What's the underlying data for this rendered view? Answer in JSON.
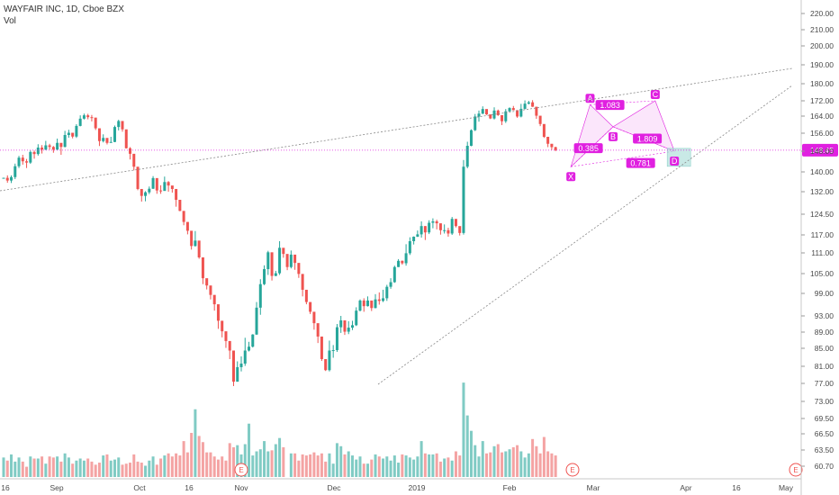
{
  "header": {
    "title": "WAYFAIR INC, 1D, Cboe BZX",
    "volume_label": "Vol"
  },
  "colors": {
    "up": "#26a69a",
    "down": "#ef5350",
    "up_vol": "#80cbc4",
    "down_vol": "#f4a3a3",
    "pattern": "#e020e0",
    "pattern_fill": "#f6c8f6",
    "target_box": "#b2dfdb",
    "trend": "#888888"
  },
  "chart_data": {
    "type": "candlestick",
    "title": "WAYFAIR INC, 1D, Cboe BZX",
    "price_axis_ticks": [
      "220.00",
      "210.00",
      "200.00",
      "190.00",
      "180.00",
      "172.00",
      "164.00",
      "156.00",
      "148.00",
      "140.00",
      "132.00",
      "124.50",
      "117.00",
      "111.00",
      "105.00",
      "99.00",
      "93.00",
      "89.00",
      "85.00",
      "81.00",
      "77.00",
      "73.00",
      "69.50",
      "66.50",
      "63.50",
      "60.70"
    ],
    "time_axis_ticks": [
      "16",
      "Sep",
      "Oct",
      "16",
      "Nov",
      "Dec",
      "2019",
      "Feb",
      "Mar",
      "Apr",
      "16",
      "May"
    ],
    "last_price": "148.45",
    "price_range": [
      58,
      224
    ],
    "earnings_markers": [
      "E",
      "E",
      "E"
    ],
    "harmonic_pattern": {
      "points": [
        {
          "label": "X",
          "price": 142
        },
        {
          "label": "A",
          "price": 170
        },
        {
          "label": "B",
          "price": 159
        },
        {
          "label": "C",
          "price": 172
        },
        {
          "label": "D",
          "price": 148
        }
      ],
      "ratios": [
        "1.083",
        "0.385",
        "1.809",
        "0.781"
      ]
    },
    "candles": [
      [
        137.6,
        137.6,
        137.7,
        137.6,
        19
      ],
      [
        137.6,
        136.5,
        138.6,
        135.6,
        16
      ],
      [
        136.5,
        137.9,
        138.6,
        135.5,
        22
      ],
      [
        137.9,
        142.2,
        143.2,
        137.1,
        15
      ],
      [
        142.2,
        145.5,
        146.2,
        141.5,
        19
      ],
      [
        145.5,
        144.1,
        146.6,
        142.8,
        15
      ],
      [
        144.1,
        143.6,
        145,
        141.5,
        10
      ],
      [
        143.6,
        147.7,
        148.3,
        143.1,
        20
      ],
      [
        147.7,
        146.9,
        148.3,
        145.1,
        18
      ],
      [
        146.9,
        149.6,
        151.1,
        146.3,
        18
      ],
      [
        149.6,
        148.7,
        150.7,
        147.1,
        20
      ],
      [
        148.7,
        150.6,
        152.6,
        148.5,
        13
      ],
      [
        150.6,
        149.9,
        151.3,
        148.7,
        20
      ],
      [
        149.9,
        148.7,
        150.3,
        147.4,
        19
      ],
      [
        148.7,
        151.7,
        153.6,
        148.6,
        20
      ],
      [
        151.7,
        149.9,
        151.2,
        146.6,
        15
      ],
      [
        149.9,
        155.2,
        157.1,
        149.7,
        23
      ],
      [
        155.2,
        156.2,
        157.6,
        154,
        19
      ],
      [
        156.2,
        154.5,
        155.4,
        153.7,
        13
      ],
      [
        154.5,
        159.4,
        160.2,
        153.9,
        16
      ],
      [
        159.4,
        162.8,
        164.4,
        159.2,
        18
      ],
      [
        162.8,
        164.4,
        165.3,
        162.4,
        16
      ],
      [
        164.4,
        163.5,
        165.2,
        162.5,
        18
      ],
      [
        163.5,
        163.3,
        164.6,
        161.5,
        15
      ],
      [
        163.3,
        158.3,
        159.4,
        157.5,
        12
      ],
      [
        158.3,
        152.5,
        153.6,
        150.3,
        14
      ],
      [
        152.5,
        153.9,
        155.5,
        151.9,
        21
      ],
      [
        153.9,
        151.7,
        152.6,
        151,
        22
      ],
      [
        151.7,
        152.1,
        154.4,
        151.7,
        16
      ],
      [
        152.1,
        158.9,
        159.6,
        152,
        17
      ],
      [
        158.9,
        161.7,
        162.3,
        157.3,
        19
      ],
      [
        161.7,
        157.8,
        158.4,
        156.7,
        12
      ],
      [
        157.8,
        149.3,
        151.4,
        149.2,
        13
      ],
      [
        149.3,
        147,
        149.8,
        144.8,
        14
      ],
      [
        147,
        142,
        142.6,
        140.6,
        22
      ],
      [
        142,
        133.1,
        133.8,
        132.6,
        15
      ],
      [
        133.1,
        130.6,
        132.2,
        128.7,
        14
      ],
      [
        130.6,
        131.8,
        132.2,
        128.8,
        11
      ],
      [
        131.8,
        133.2,
        134.1,
        131.2,
        16
      ],
      [
        133.2,
        137.5,
        138.3,
        133.1,
        20
      ],
      [
        137.5,
        132.5,
        134.3,
        131.3,
        12
      ],
      [
        132.5,
        132.3,
        134.6,
        131.3,
        18
      ],
      [
        132.3,
        135.9,
        138.1,
        134.2,
        21
      ],
      [
        135.9,
        134.5,
        136.3,
        132,
        23
      ],
      [
        134.5,
        133.1,
        133.9,
        131.7,
        20
      ],
      [
        133.1,
        129.3,
        129.5,
        127,
        23
      ],
      [
        129.3,
        125.6,
        127.3,
        125.5,
        21
      ],
      [
        125.6,
        121.7,
        123.5,
        120.5,
        35
      ],
      [
        121.7,
        118.5,
        119.9,
        117.2,
        24
      ],
      [
        118.5,
        113.3,
        114.5,
        112.1,
        43
      ],
      [
        113.3,
        115.1,
        118.4,
        113.1,
        66
      ],
      [
        115.1,
        109.7,
        111.5,
        109.3,
        40
      ],
      [
        109.7,
        103.6,
        105.6,
        101.8,
        34
      ],
      [
        103.6,
        101.4,
        102.8,
        100.2,
        24
      ],
      [
        101.4,
        98.6,
        100.2,
        97.4,
        24
      ],
      [
        98.6,
        96.1,
        98.1,
        94.4,
        20
      ],
      [
        96.1,
        91.8,
        93.5,
        89.8,
        17
      ],
      [
        91.8,
        89.2,
        91.5,
        87.7,
        20
      ],
      [
        89.2,
        86.8,
        88.4,
        85.1,
        16
      ],
      [
        86.8,
        84.5,
        86.6,
        82.6,
        33
      ],
      [
        84.5,
        77.4,
        80.1,
        76.4,
        29
      ],
      [
        77.4,
        80.8,
        82.1,
        77.4,
        31
      ],
      [
        80.8,
        81.6,
        83.2,
        79.8,
        22
      ],
      [
        81.6,
        84.5,
        87.6,
        81.1,
        32
      ],
      [
        84.5,
        85.4,
        86.6,
        84.3,
        52
      ],
      [
        85.4,
        88.4,
        88.5,
        85.2,
        21
      ],
      [
        88.4,
        95.2,
        96.7,
        88.3,
        25
      ],
      [
        95.2,
        101.8,
        103.3,
        93.3,
        27
      ],
      [
        101.8,
        106.3,
        107.4,
        101.5,
        35
      ],
      [
        106.3,
        111.2,
        111.7,
        104.6,
        25
      ],
      [
        111.2,
        104.3,
        105.5,
        102.9,
        26
      ],
      [
        104.3,
        105.1,
        105.8,
        104.2,
        32
      ],
      [
        105.1,
        112.7,
        114.9,
        104.6,
        38
      ],
      [
        112.7,
        110.7,
        112.4,
        109.6,
        29
      ],
      [
        110.7,
        106.9,
        108.4,
        106
      ],
      [
        106.9,
        110.5,
        111.8,
        106.5,
        23
      ],
      [
        110.5,
        108.1,
        109.5,
        106.1,
        23
      ],
      [
        108.1,
        104.9,
        106.3,
        103.7,
        16
      ],
      [
        104.9,
        100.1,
        101,
        98.2,
        22
      ],
      [
        100.1,
        96.7,
        98.6,
        96.1,
        21
      ],
      [
        96.7,
        94.1,
        95.6,
        93.5,
        22
      ],
      [
        94.1,
        91.2,
        92.7,
        89.6,
        24
      ],
      [
        91.2,
        87.9,
        89,
        86.3,
        21
      ],
      [
        87.9,
        82.6,
        84.7,
        82.2,
        23
      ],
      [
        82.6,
        80.1,
        80.9,
        79.9,
        15
      ],
      [
        80.1,
        84.5,
        86.9,
        79.8,
        23
      ],
      [
        84.5,
        84.6,
        85.8,
        82.9,
        13
      ],
      [
        84.6,
        90.2,
        91,
        84.2,
        33
      ],
      [
        90.2,
        91.9,
        93,
        88.8,
        30
      ],
      [
        91.9,
        89.1,
        90.8,
        88.3,
        22
      ],
      [
        89.1,
        90.1,
        91.7,
        88.5,
        25
      ],
      [
        90.1,
        90.7,
        91.8,
        89.5,
        21
      ],
      [
        90.7,
        94.4,
        95.3,
        90.5,
        17
      ],
      [
        94.4,
        97.1,
        97.4,
        94.2,
        20
      ],
      [
        97.1,
        95.6,
        97.7,
        94.1,
        13
      ],
      [
        95.6,
        97.1,
        98.2,
        95.5,
        13
      ],
      [
        97.1,
        95.1,
        96.2,
        94.3,
        17
      ],
      [
        95.1,
        97.4,
        98.8,
        95,
        22
      ],
      [
        97.4,
        97,
        99.3,
        96,
        20
      ],
      [
        97,
        97.7,
        100.1,
        96.7,
        18
      ],
      [
        97.7,
        101,
        101.6,
        97,
        20
      ],
      [
        101,
        102.4,
        103.6,
        100.4,
        16
      ],
      [
        102.4,
        106.9,
        107.3,
        102.2,
        21
      ],
      [
        106.9,
        108.7,
        109.2,
        106.9,
        14
      ],
      [
        108.7,
        108,
        108.8,
        107.6,
        22
      ],
      [
        108,
        110.9,
        113.9,
        107.3,
        21
      ],
      [
        110.9,
        114.9,
        116.2,
        110.4,
        19
      ],
      [
        114.9,
        116.4,
        116.5,
        113.8,
        17
      ],
      [
        116.4,
        117.2,
        118.6,
        116.3,
        20
      ],
      [
        117.2,
        120.2,
        121.9,
        116.1,
        35
      ],
      [
        120.2,
        117.9,
        120.2,
        115.3,
        23
      ],
      [
        117.9,
        121.4,
        122.3,
        117.3,
        22
      ],
      [
        121.4,
        121.9,
        123,
        119.4,
        22
      ],
      [
        121.9,
        121.2,
        122.5,
        119,
        23
      ],
      [
        121.2,
        118.7,
        120.1,
        117.1,
        15
      ],
      [
        118.7,
        118.7,
        120.8,
        117.5,
        18
      ],
      [
        118.7,
        117.5,
        119.6,
        116.4,
        19
      ],
      [
        117.5,
        122.8,
        123.5,
        117,
        16
      ],
      [
        122.8,
        120.2,
        121.1,
        119.7,
        25
      ],
      [
        120.2,
        117.7,
        118.4,
        116.8,
        21
      ],
      [
        117.7,
        142,
        144.6,
        117.1,
        92
      ],
      [
        142,
        150.4,
        152.2,
        141.4,
        60
      ],
      [
        150.4,
        157.4,
        157.8,
        150.2,
        45
      ],
      [
        157.4,
        163.8,
        165.1,
        157,
        31
      ],
      [
        163.8,
        165.3,
        166.9,
        161.4,
        20
      ],
      [
        165.3,
        167.7,
        169.1,
        165,
        35
      ],
      [
        167.7,
        164.9,
        166.8,
        164.6,
        23
      ],
      [
        164.9,
        162.9,
        163.6,
        162.6,
        24
      ],
      [
        162.9,
        166.9,
        168.6,
        162.4,
        30
      ],
      [
        166.9,
        164.5,
        167.4,
        164.1,
        32
      ],
      [
        164.5,
        161.6,
        163.2,
        159.8,
        24
      ],
      [
        161.6,
        166.5,
        167.7,
        160.8,
        25
      ],
      [
        166.5,
        168.2,
        168.6,
        166.4,
        27
      ],
      [
        168.2,
        167.1,
        169.3,
        167,
        29
      ],
      [
        167.1,
        163.8,
        166.7,
        163.2,
        31
      ],
      [
        163.8,
        167.8,
        170.4,
        163.4,
        25
      ],
      [
        167.8,
        170.5,
        172.2,
        167.5,
        19
      ],
      [
        170.5,
        171.2,
        172,
        170.1,
        23
      ],
      [
        171.2,
        168.9,
        172.3,
        168.8,
        37
      ],
      [
        168.9,
        164.2,
        165.6,
        162.7,
        30
      ],
      [
        164.2,
        160.3,
        162.3,
        159.3,
        23
      ],
      [
        160.3,
        154.4,
        156.1,
        153.9,
        39
      ],
      [
        154.4,
        151.3,
        152,
        149.8,
        25
      ],
      [
        151.3,
        149.8,
        150.7,
        148.6,
        23
      ],
      [
        149.8,
        148.5,
        150,
        148,
        21
      ]
    ]
  }
}
